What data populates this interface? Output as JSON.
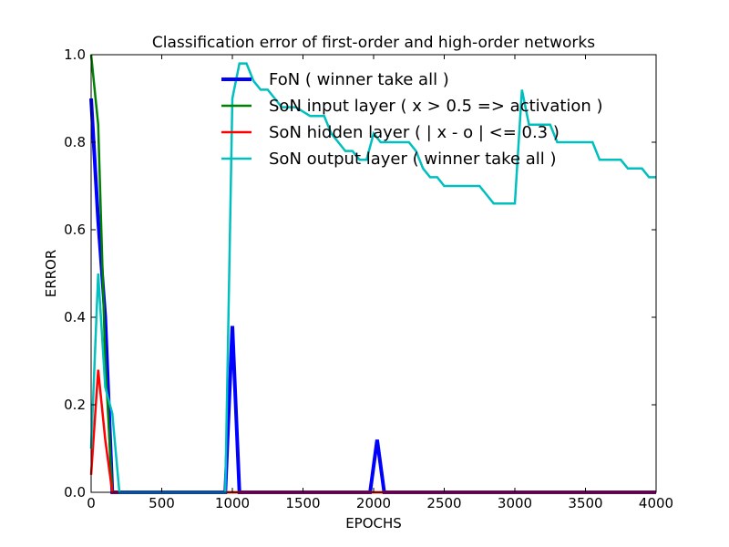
{
  "chart_data": {
    "type": "line",
    "title": "Classification error of first-order and high-order networks",
    "xlabel": "EPOCHS",
    "ylabel": "ERROR",
    "xlim": [
      0,
      4000
    ],
    "ylim": [
      0,
      1.0
    ],
    "x_ticks": [
      "0",
      "500",
      "1000",
      "1500",
      "2000",
      "2500",
      "3000",
      "3500",
      "4000"
    ],
    "y_ticks": [
      "0.0",
      "0.2",
      "0.4",
      "0.6",
      "0.8",
      "1.0"
    ],
    "grid": false,
    "legend_position": "top-center",
    "series": [
      {
        "name": "FoN ( winner take all )",
        "color": "#0000ff",
        "line_width": "thick",
        "points": [
          [
            0,
            0.9
          ],
          [
            50,
            0.62
          ],
          [
            100,
            0.4
          ],
          [
            150,
            0.0
          ],
          [
            200,
            0.0
          ],
          [
            950,
            0.0
          ],
          [
            1000,
            0.38
          ],
          [
            1050,
            0.0
          ],
          [
            1975,
            0.0
          ],
          [
            2025,
            0.12
          ],
          [
            2075,
            0.0
          ],
          [
            4000,
            0.0
          ]
        ]
      },
      {
        "name": "SoN input layer ( x > 0.5 => activation )",
        "color": "#008000",
        "line_width": "normal",
        "points": [
          [
            0,
            1.0
          ],
          [
            50,
            0.84
          ],
          [
            100,
            0.3
          ],
          [
            150,
            0.0
          ],
          [
            4000,
            0.0
          ]
        ]
      },
      {
        "name": "SoN hidden layer ( | x - o | <= 0.3 )",
        "color": "#ff0000",
        "line_width": "normal",
        "points": [
          [
            0,
            0.04
          ],
          [
            50,
            0.28
          ],
          [
            100,
            0.12
          ],
          [
            150,
            0.0
          ],
          [
            4000,
            0.0
          ]
        ]
      },
      {
        "name": "SoN output layer ( winner take all )",
        "color": "#00bfbf",
        "line_width": "normal",
        "points": [
          [
            0,
            0.1
          ],
          [
            50,
            0.5
          ],
          [
            100,
            0.24
          ],
          [
            150,
            0.18
          ],
          [
            200,
            0.0
          ],
          [
            950,
            0.0
          ],
          [
            1000,
            0.9
          ],
          [
            1050,
            0.98
          ],
          [
            1100,
            0.98
          ],
          [
            1150,
            0.94
          ],
          [
            1200,
            0.92
          ],
          [
            1250,
            0.92
          ],
          [
            1300,
            0.9
          ],
          [
            1350,
            0.88
          ],
          [
            1450,
            0.88
          ],
          [
            1550,
            0.86
          ],
          [
            1650,
            0.86
          ],
          [
            1700,
            0.82
          ],
          [
            1750,
            0.8
          ],
          [
            1800,
            0.78
          ],
          [
            1850,
            0.78
          ],
          [
            1900,
            0.76
          ],
          [
            1950,
            0.76
          ],
          [
            2000,
            0.82
          ],
          [
            2050,
            0.8
          ],
          [
            2250,
            0.8
          ],
          [
            2300,
            0.78
          ],
          [
            2350,
            0.74
          ],
          [
            2400,
            0.72
          ],
          [
            2450,
            0.72
          ],
          [
            2500,
            0.7
          ],
          [
            2750,
            0.7
          ],
          [
            2800,
            0.68
          ],
          [
            2850,
            0.66
          ],
          [
            2950,
            0.66
          ],
          [
            3000,
            0.66
          ],
          [
            3050,
            0.92
          ],
          [
            3100,
            0.84
          ],
          [
            3150,
            0.84
          ],
          [
            3250,
            0.84
          ],
          [
            3300,
            0.8
          ],
          [
            3550,
            0.8
          ],
          [
            3600,
            0.76
          ],
          [
            3750,
            0.76
          ],
          [
            3800,
            0.74
          ],
          [
            3900,
            0.74
          ],
          [
            3950,
            0.72
          ],
          [
            4000,
            0.72
          ]
        ]
      }
    ]
  }
}
